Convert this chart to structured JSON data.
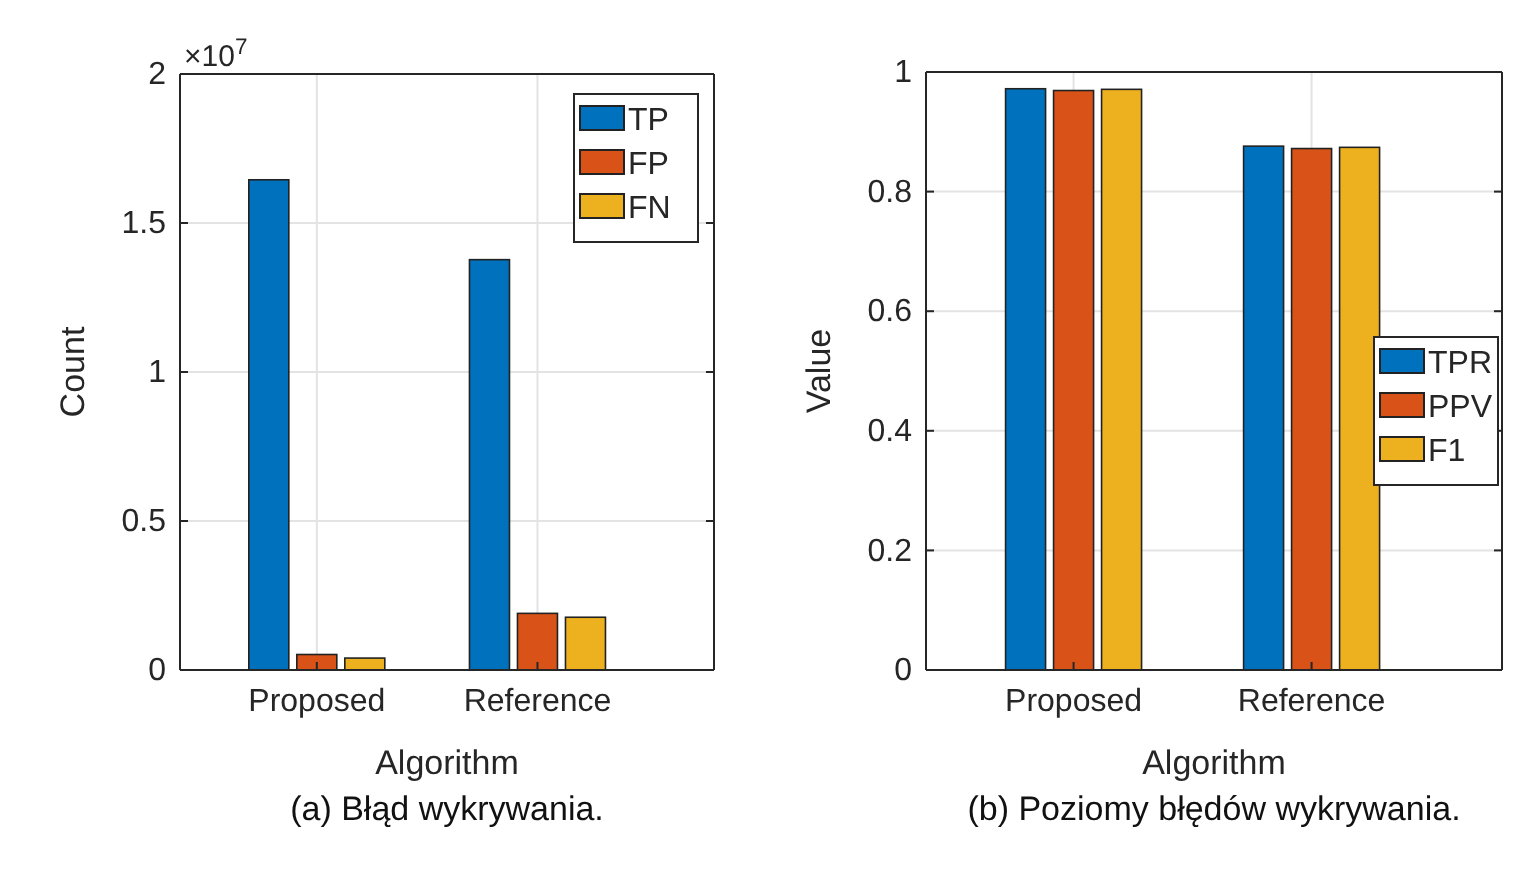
{
  "chart_data": [
    {
      "type": "bar",
      "xlabel": "Algorithm",
      "ylabel": "Count",
      "categories": [
        "Proposed",
        "Reference"
      ],
      "series": [
        {
          "name": "TP",
          "color": "#0072bd",
          "values": [
            1.645,
            1.377
          ]
        },
        {
          "name": "FP",
          "color": "#d95319",
          "values": [
            0.052,
            0.19
          ]
        },
        {
          "name": "FN",
          "color": "#edb120",
          "values": [
            0.04,
            0.177
          ]
        }
      ],
      "ylim": [
        0,
        2
      ],
      "yticks": [
        0,
        0.5,
        1,
        1.5,
        2
      ],
      "grid": true,
      "legend": "top right",
      "annotations": [
        "×10$^{7}$",
        "(a) Błąd wykrywania."
      ]
    },
    {
      "type": "bar",
      "xlabel": "Algorithm",
      "ylabel": "Value",
      "categories": [
        "Proposed",
        "Reference"
      ],
      "series": [
        {
          "name": "TPR",
          "color": "#0072bd",
          "values": [
            0.972,
            0.876
          ]
        },
        {
          "name": "PPV",
          "color": "#d95319",
          "values": [
            0.969,
            0.872
          ]
        },
        {
          "name": "F1",
          "color": "#edb120",
          "values": [
            0.971,
            0.874
          ]
        }
      ],
      "ylim": [
        0,
        1
      ],
      "yticks": [
        0,
        0.2,
        0.4,
        0.6,
        0.8,
        1
      ],
      "grid": true,
      "legend": "right",
      "annotations": [
        "(b) Poziomy błędów wykrywania."
      ]
    }
  ]
}
